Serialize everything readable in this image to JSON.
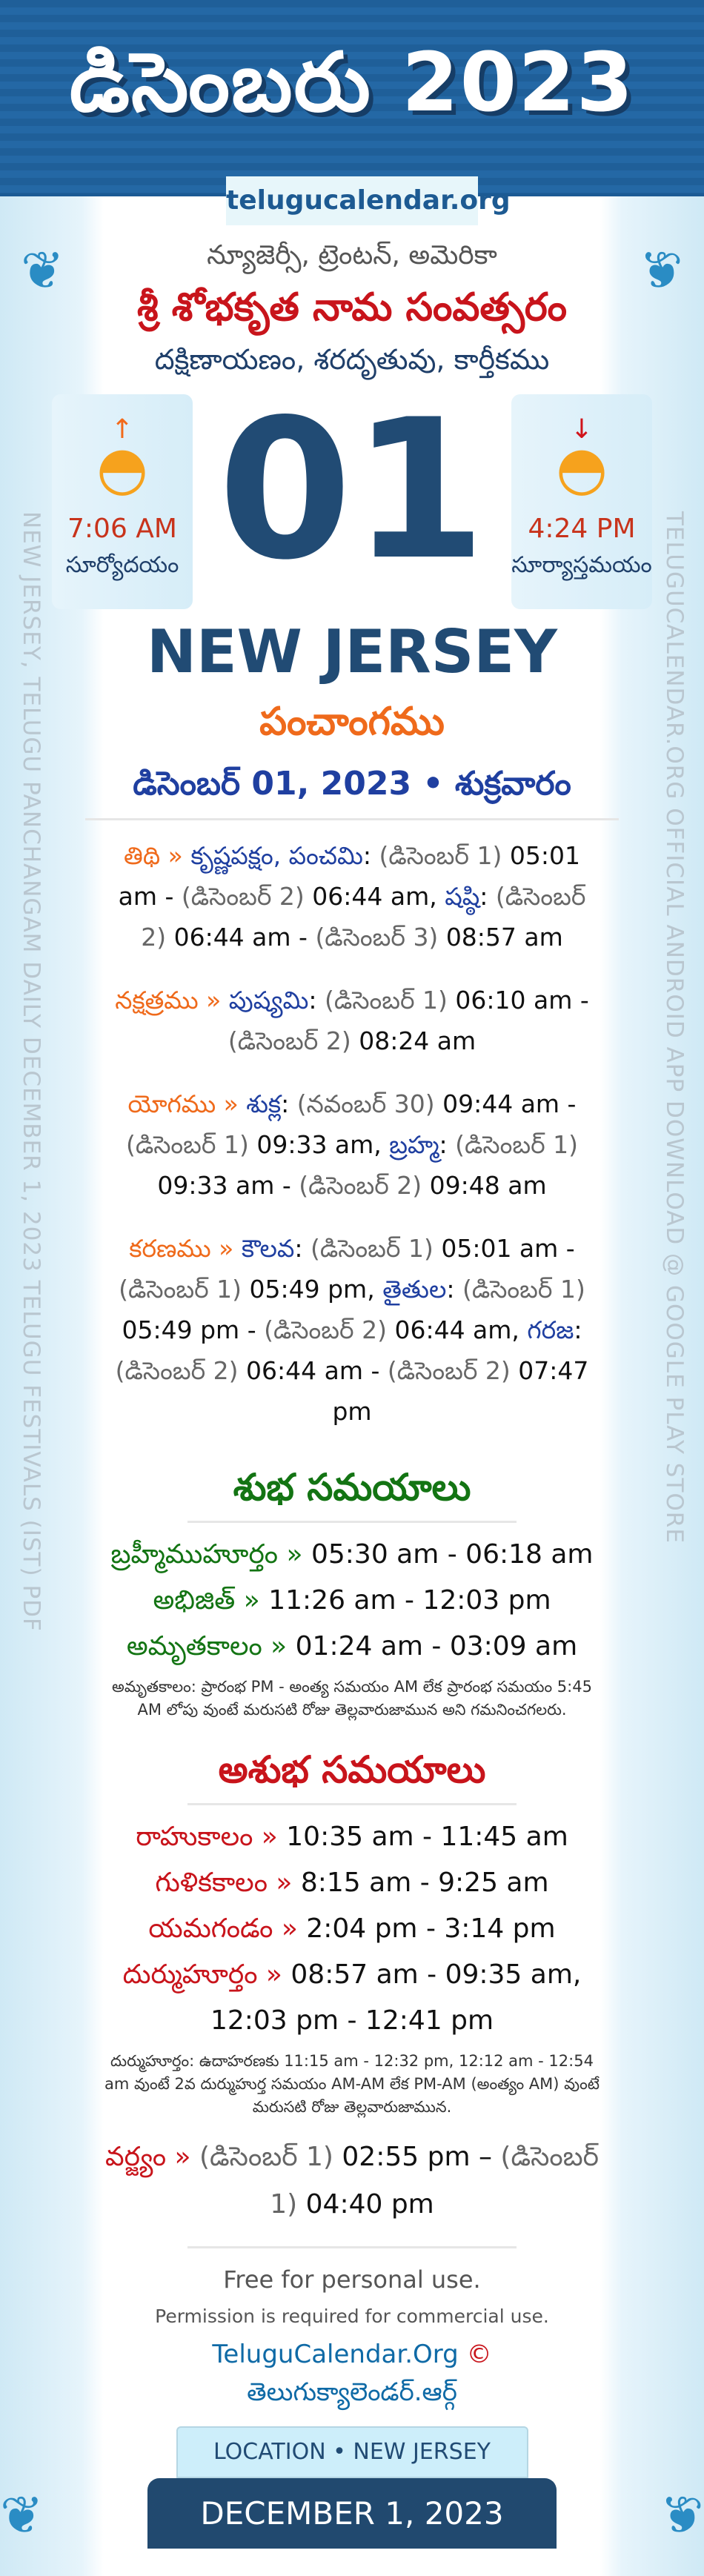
{
  "header": {
    "title": "డిసెంబరు 2023",
    "site": "telugucalendar.org"
  },
  "side": {
    "left": "NEW JERSEY, TELUGU PANCHANGAM DAILY DECEMBER 1, 2023 TELUGU FESTIVALS (IST) PDF",
    "right": "TELUGUCALENDAR.ORG OFFICIAL ANDROID APP DOWNLOAD @ GOOGLE PLAY STORE"
  },
  "location_te": "న్యూజెర్సీ, ట్రెంటన్, అమెరికా",
  "samvatsaram": "శ్రీ శోభకృత నామ సంవత్సరం",
  "ayana": "దక్షిణాయణం, శరదృతువు, కార్తీకము",
  "sunrise": {
    "time": "7:06 AM",
    "label": "సూర్యోదయం",
    "icon": "sunrise-icon"
  },
  "sunset": {
    "time": "4:24 PM",
    "label": "సూర్యాస్తమయం",
    "icon": "sunset-icon"
  },
  "day": "01",
  "city": "NEW JERSEY",
  "panchangam": "పంచాంగము",
  "date_line": "డిసెంబర్ 01, 2023 • శుక్రవారం",
  "watermark": "telugucalendar.org",
  "entries": [
    [
      [
        "lab",
        "తిథి » "
      ],
      [
        "nm",
        "కృష్ణపక్షం, పంచమి"
      ],
      [
        "tm",
        ": "
      ],
      [
        "dt",
        "(డిసెంబర్ 1) "
      ],
      [
        "tm",
        "05:01 am - "
      ],
      [
        "dt",
        "(డిసెంబర్ 2) "
      ],
      [
        "tm",
        "06:44 am, "
      ],
      [
        "nm",
        "షష్ఠి"
      ],
      [
        "tm",
        ": "
      ],
      [
        "dt",
        "(డిసెంబర్ 2) "
      ],
      [
        "tm",
        "06:44 am - "
      ],
      [
        "dt",
        "(డిసెంబర్ 3) "
      ],
      [
        "tm",
        "08:57 am"
      ]
    ],
    [
      [
        "lab",
        "నక్షత్రము » "
      ],
      [
        "nm",
        "పుష్యమి"
      ],
      [
        "tm",
        ": "
      ],
      [
        "dt",
        "(డిసెంబర్ 1) "
      ],
      [
        "tm",
        "06:10 am - "
      ],
      [
        "dt",
        "(డిసెంబర్ 2) "
      ],
      [
        "tm",
        "08:24 am"
      ]
    ],
    [
      [
        "lab",
        "యోగము » "
      ],
      [
        "nm",
        "శుక్ల"
      ],
      [
        "tm",
        ": "
      ],
      [
        "dt",
        "(నవంబర్ 30) "
      ],
      [
        "tm",
        "09:44 am - "
      ],
      [
        "dt",
        "(డిసెంబర్ 1) "
      ],
      [
        "tm",
        "09:33 am, "
      ],
      [
        "nm",
        "బ్రహ్మ"
      ],
      [
        "tm",
        ": "
      ],
      [
        "dt",
        "(డిసెంబర్ 1) "
      ],
      [
        "tm",
        "09:33 am - "
      ],
      [
        "dt",
        "(డిసెంబర్ 2) "
      ],
      [
        "tm",
        "09:48 am"
      ]
    ],
    [
      [
        "lab",
        "కరణము » "
      ],
      [
        "nm",
        "కౌలవ"
      ],
      [
        "tm",
        ": "
      ],
      [
        "dt",
        "(డిసెంబర్ 1) "
      ],
      [
        "tm",
        "05:01 am - "
      ],
      [
        "dt",
        "(డిసెంబర్ 1) "
      ],
      [
        "tm",
        "05:49 pm, "
      ],
      [
        "nm",
        "తైతుల"
      ],
      [
        "tm",
        ": "
      ],
      [
        "dt",
        "(డిసెంబర్ 1) "
      ],
      [
        "tm",
        "05:49 pm - "
      ],
      [
        "dt",
        "(డిసెంబర్ 2) "
      ],
      [
        "tm",
        "06:44 am, "
      ],
      [
        "nm",
        "గరజ"
      ],
      [
        "tm",
        ": "
      ],
      [
        "dt",
        "(డిసెంబర్ 2) "
      ],
      [
        "tm",
        "06:44 am - "
      ],
      [
        "dt",
        "(డిసెంబర్ 2) "
      ],
      [
        "tm",
        "07:47 pm"
      ]
    ]
  ],
  "shubha": {
    "heading": "శుభ సమయాలు",
    "color": "#137413",
    "rows": [
      {
        "label": "బ్రహ్మీముహూర్తం » ",
        "time": "05:30 am - 06:18 am"
      },
      {
        "label": "అభిజిత్ » ",
        "time": "11:26 am - 12:03 pm"
      },
      {
        "label": "అమృతకాలం » ",
        "time": "01:24 am - 03:09 am"
      }
    ],
    "note": "అమృతకాలం: ప్రారంభ PM - అంత్య సమయం AM లేక ప్రారంభ సమయం 5:45 AM లోపు వుంటే మరుసటి రోజు తెల్లవారుజామున అని గమనించగలరు."
  },
  "ashubha": {
    "heading": "అశుభ సమయాలు",
    "color": "#c8141b",
    "rows": [
      {
        "label": "రాహుకాలం » ",
        "time": "10:35 am - 11:45 am"
      },
      {
        "label": "గుళికకాలం » ",
        "time": "8:15 am - 9:25 am"
      },
      {
        "label": "యమగండం » ",
        "time": "2:04 pm - 3:14 pm"
      },
      {
        "label": "దుర్ముహూర్తం » ",
        "time": "08:57 am - 09:35 am, 12:03 pm - 12:41 pm"
      }
    ],
    "note": "దుర్ముహూర్తం: ఉదాహరణకు 11:15 am - 12:32 pm, 12:12 am - 12:54 am వుంటే 2వ దుర్ముహుర్త సమయం AM-AM లేక PM-AM (అంత్యం AM) వుంటే మరుసటి రోజు తెల్లవారుజామున."
  },
  "varjyam": [
    [
      "rlab",
      "వర్జ్యం » "
    ],
    [
      "dt",
      "(డిసెంబర్ 1) "
    ],
    [
      "tm",
      "02:55 pm – "
    ],
    [
      "dt",
      "(డిసెంబర్ 1) "
    ],
    [
      "tm",
      "04:40 pm"
    ]
  ],
  "footer": {
    "free": "Free for personal use.",
    "permission": "Permission is required for commercial use.",
    "link_en": "TeluguCalendar.Org",
    "copyright": "©",
    "link_te": "తెలుగుక్యాలెండర్.ఆర్గ్"
  },
  "location_badge": "LOCATION • NEW JERSEY",
  "date_banner": "DECEMBER 1, 2023"
}
